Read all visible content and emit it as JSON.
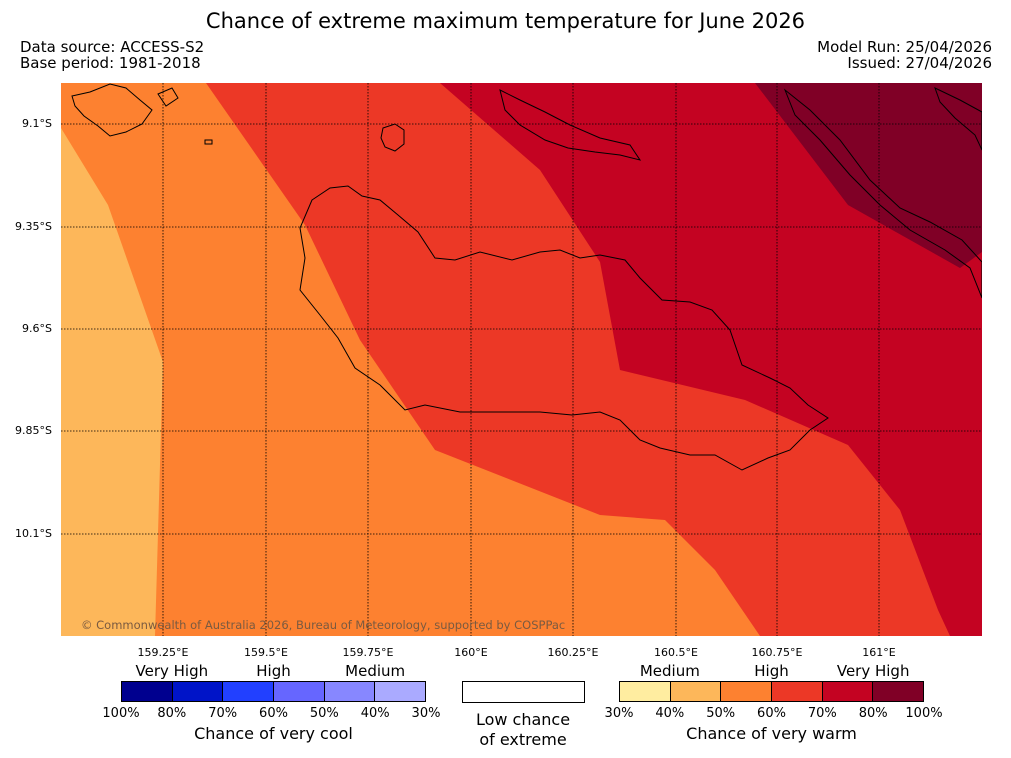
{
  "title": "Chance of extreme maximum temperature for June 2026",
  "meta": {
    "data_source": "Data source: ACCESS-S2",
    "base_period": "Base period: 1981-2018",
    "model_run": "Model Run: 25/04/2026",
    "issued": "Issued: 27/04/2026"
  },
  "map": {
    "lat_labels": [
      "9.1°S",
      "9.35°S",
      "9.6°S",
      "9.85°S",
      "10.1°S"
    ],
    "lon_labels": [
      "159.25°E",
      "159.5°E",
      "159.75°E",
      "160°E",
      "160.25°E",
      "160.5°E",
      "160.75°E",
      "161°E"
    ],
    "copyright": "© Commonwealth of Australia 2026, Bureau of Meteorology, supported by COSPPac",
    "colors": {
      "c30_40": "#fdb75a",
      "c50_60": "#fd8130",
      "c60_70": "#ec3826",
      "c70_80": "#c40322",
      "c80_100": "#800026"
    }
  },
  "legend": {
    "cool": {
      "categories": [
        "Very High",
        "High",
        "Medium"
      ],
      "percents": [
        "100%",
        "80%",
        "70%",
        "60%",
        "50%",
        "40%",
        "30%"
      ],
      "colors": [
        "#00008f",
        "#0014c8",
        "#2240ff",
        "#6666ff",
        "#8787ff",
        "#aaaaff"
      ],
      "label": "Chance of very cool"
    },
    "neutral": {
      "label_line1": "Low chance",
      "label_line2": "of extreme"
    },
    "warm": {
      "categories": [
        "Medium",
        "High",
        "Very High"
      ],
      "percents": [
        "30%",
        "40%",
        "50%",
        "60%",
        "70%",
        "80%",
        "100%"
      ],
      "colors": [
        "#ffeda0",
        "#fdb75a",
        "#fd8130",
        "#ec3826",
        "#c40322",
        "#800026"
      ],
      "label": "Chance of very warm"
    }
  }
}
